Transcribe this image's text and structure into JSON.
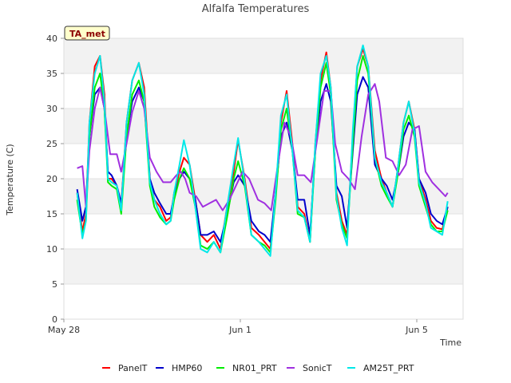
{
  "chart_data": {
    "type": "line",
    "title": "Alfalfa Temperatures",
    "badge": "TA_met",
    "xlabel": "Time",
    "ylabel": "Temperature (C)",
    "ylim": [
      0,
      40
    ],
    "yticks": [
      0,
      5,
      10,
      15,
      20,
      25,
      30,
      35,
      40
    ],
    "xlim": [
      0,
      9.05
    ],
    "xticks": [
      {
        "value": 0,
        "label": "May 28"
      },
      {
        "value": 4,
        "label": "Jun 1"
      },
      {
        "value": 8,
        "label": "Jun 5"
      }
    ],
    "grid": true,
    "legend_position": "bottom",
    "series": [
      {
        "name": "PanelT",
        "color": "#ff0000",
        "x": [
          0.3,
          0.42,
          0.5,
          0.58,
          0.7,
          0.82,
          0.92,
          1.0,
          1.08,
          1.2,
          1.3,
          1.42,
          1.55,
          1.7,
          1.82,
          1.95,
          2.05,
          2.18,
          2.32,
          2.42,
          2.5,
          2.62,
          2.72,
          2.85,
          2.98,
          3.1,
          3.25,
          3.4,
          3.55,
          3.7,
          3.85,
          3.95,
          4.1,
          4.25,
          4.42,
          4.55,
          4.68,
          4.8,
          4.92,
          5.05,
          5.18,
          5.3,
          5.45,
          5.58,
          5.7,
          5.82,
          5.95,
          6.05,
          6.18,
          6.3,
          6.42,
          6.55,
          6.65,
          6.78,
          6.9,
          7.05,
          7.2,
          7.32,
          7.45,
          7.58,
          7.7,
          7.82,
          7.95,
          8.05,
          8.2,
          8.32,
          8.45,
          8.58,
          8.7
        ],
        "y": [
          18,
          12.5,
          15,
          28,
          36,
          37.5,
          32,
          20,
          20,
          19,
          16,
          28,
          34,
          36.5,
          33,
          20,
          17,
          16,
          14,
          14.5,
          18,
          21,
          23,
          22,
          17,
          12,
          11,
          12,
          10,
          16,
          21,
          25.5,
          20,
          13,
          12,
          11,
          10,
          18,
          28,
          32.5,
          25,
          16,
          15,
          11,
          25,
          34,
          38,
          33,
          18,
          14,
          12,
          26,
          36,
          38.5,
          36,
          24,
          20,
          18,
          16,
          22,
          28,
          31,
          27,
          20,
          17,
          14,
          13,
          12.8,
          16
        ]
      },
      {
        "name": "HMP60",
        "color": "#0000cc",
        "x": [
          0.3,
          0.42,
          0.5,
          0.58,
          0.7,
          0.82,
          0.92,
          1.0,
          1.08,
          1.2,
          1.3,
          1.42,
          1.55,
          1.7,
          1.82,
          1.95,
          2.05,
          2.18,
          2.32,
          2.42,
          2.5,
          2.62,
          2.72,
          2.85,
          2.98,
          3.1,
          3.25,
          3.4,
          3.55,
          3.7,
          3.85,
          3.95,
          4.1,
          4.25,
          4.42,
          4.55,
          4.68,
          4.8,
          4.92,
          5.05,
          5.18,
          5.3,
          5.45,
          5.58,
          5.7,
          5.82,
          5.95,
          6.05,
          6.18,
          6.3,
          6.42,
          6.55,
          6.65,
          6.78,
          6.9,
          7.05,
          7.2,
          7.32,
          7.45,
          7.58,
          7.7,
          7.82,
          7.95,
          8.05,
          8.2,
          8.32,
          8.45,
          8.58,
          8.7
        ],
        "y": [
          18.5,
          14,
          16,
          26,
          32,
          33,
          30,
          21,
          20.5,
          19,
          16.5,
          26,
          31,
          33,
          31,
          20,
          18,
          16.5,
          15,
          15,
          17.5,
          20,
          21,
          20,
          17,
          12,
          12,
          12.5,
          11,
          15,
          19.5,
          20.5,
          19,
          14,
          12.5,
          12,
          11,
          18,
          26,
          28,
          24,
          17,
          17,
          12,
          24,
          31,
          33.5,
          31,
          19,
          17.5,
          13,
          24,
          32,
          34.5,
          33,
          22,
          20,
          19,
          17,
          21,
          26,
          28,
          27,
          20,
          18,
          15,
          14,
          13.5,
          16
        ]
      },
      {
        "name": "NR01_PRT",
        "color": "#00ee00",
        "x": [
          0.3,
          0.42,
          0.5,
          0.58,
          0.7,
          0.82,
          0.92,
          1.0,
          1.08,
          1.2,
          1.3,
          1.42,
          1.55,
          1.7,
          1.82,
          1.95,
          2.05,
          2.18,
          2.32,
          2.42,
          2.5,
          2.62,
          2.72,
          2.85,
          2.98,
          3.1,
          3.25,
          3.4,
          3.55,
          3.7,
          3.85,
          3.95,
          4.1,
          4.25,
          4.42,
          4.55,
          4.68,
          4.8,
          4.92,
          5.05,
          5.18,
          5.3,
          5.45,
          5.58,
          5.7,
          5.82,
          5.95,
          6.05,
          6.18,
          6.3,
          6.42,
          6.55,
          6.65,
          6.78,
          6.9,
          7.05,
          7.2,
          7.32,
          7.45,
          7.58,
          7.7,
          7.82,
          7.95,
          8.05,
          8.2,
          8.32,
          8.45,
          8.58,
          8.7
        ],
        "y": [
          17,
          12,
          14,
          26,
          33,
          35,
          30,
          19.5,
          19,
          18.5,
          15,
          26,
          32,
          34,
          31,
          19,
          16,
          14.5,
          13.5,
          14,
          17,
          20,
          21.5,
          20,
          16,
          10.5,
          10,
          11,
          9.5,
          14.5,
          20,
          22.5,
          19,
          12,
          11,
          10.5,
          9.5,
          17,
          27,
          30,
          24,
          15,
          14.5,
          11,
          24,
          33,
          36.5,
          32,
          17,
          13.5,
          11.5,
          25,
          34,
          37.5,
          35,
          23,
          19,
          17.5,
          16,
          21,
          27,
          29,
          26,
          19,
          16,
          13.5,
          12.5,
          12.5,
          15.5
        ]
      },
      {
        "name": "SonicT",
        "color": "#a030e0",
        "x": [
          0.3,
          0.42,
          0.5,
          0.58,
          0.7,
          0.82,
          0.92,
          1.05,
          1.2,
          1.3,
          1.42,
          1.55,
          1.7,
          1.82,
          1.95,
          2.1,
          2.25,
          2.42,
          2.55,
          2.65,
          2.75,
          2.85,
          3.0,
          3.15,
          3.3,
          3.45,
          3.6,
          3.75,
          3.9,
          4.05,
          4.2,
          4.4,
          4.55,
          4.7,
          4.85,
          5.0,
          5.15,
          5.3,
          5.45,
          5.6,
          5.75,
          5.9,
          6.05,
          6.15,
          6.3,
          6.45,
          6.6,
          6.75,
          6.9,
          7.05,
          7.15,
          7.3,
          7.45,
          7.6,
          7.75,
          7.9,
          8.05,
          8.2,
          8.35,
          8.5,
          8.65,
          8.7
        ],
        "y": [
          21.5,
          21.8,
          16,
          24,
          30,
          33,
          30,
          23.5,
          23.5,
          21,
          25,
          29.5,
          32.5,
          30,
          23,
          21,
          19.5,
          19.5,
          20.5,
          21,
          20,
          18,
          17.5,
          16,
          16.5,
          17,
          15.5,
          17,
          19,
          21,
          20,
          17,
          16.5,
          15.5,
          22,
          28,
          26,
          20.5,
          20.5,
          19.5,
          26,
          32.5,
          32.5,
          25,
          21,
          20,
          18.5,
          26,
          32,
          33.5,
          31,
          23,
          22.5,
          20.5,
          22,
          27,
          27.5,
          21,
          19.5,
          18.5,
          17.5,
          18
        ]
      },
      {
        "name": "AM25T_PRT",
        "color": "#00e8e8",
        "x": [
          0.3,
          0.42,
          0.5,
          0.58,
          0.7,
          0.82,
          0.92,
          1.0,
          1.08,
          1.2,
          1.3,
          1.42,
          1.55,
          1.7,
          1.82,
          1.95,
          2.05,
          2.18,
          2.32,
          2.42,
          2.5,
          2.62,
          2.72,
          2.85,
          2.98,
          3.1,
          3.25,
          3.4,
          3.55,
          3.7,
          3.85,
          3.95,
          4.1,
          4.25,
          4.42,
          4.55,
          4.68,
          4.8,
          4.92,
          5.05,
          5.18,
          5.3,
          5.45,
          5.58,
          5.7,
          5.82,
          5.95,
          6.05,
          6.18,
          6.3,
          6.42,
          6.55,
          6.65,
          6.78,
          6.9,
          7.05,
          7.2,
          7.32,
          7.45,
          7.58,
          7.7,
          7.82,
          7.95,
          8.05,
          8.2,
          8.32,
          8.45,
          8.58,
          8.7
        ],
        "y": [
          18,
          11.5,
          14,
          28,
          35,
          37.5,
          31,
          20,
          19.5,
          19,
          15.5,
          28,
          34,
          36.5,
          32,
          19.5,
          17,
          15,
          13.5,
          14,
          18,
          22,
          25.5,
          22,
          16,
          10,
          9.5,
          11,
          9.5,
          16,
          22,
          25.8,
          19.5,
          12,
          11,
          10,
          9,
          18,
          29,
          32,
          24,
          15.5,
          14.5,
          11,
          25,
          35,
          37.5,
          33,
          17.5,
          13,
          10.5,
          27,
          36,
          39,
          36,
          23,
          19.5,
          18,
          16,
          22,
          28,
          31,
          26.5,
          19.5,
          16.5,
          13,
          12.5,
          12,
          16.8
        ]
      }
    ]
  }
}
